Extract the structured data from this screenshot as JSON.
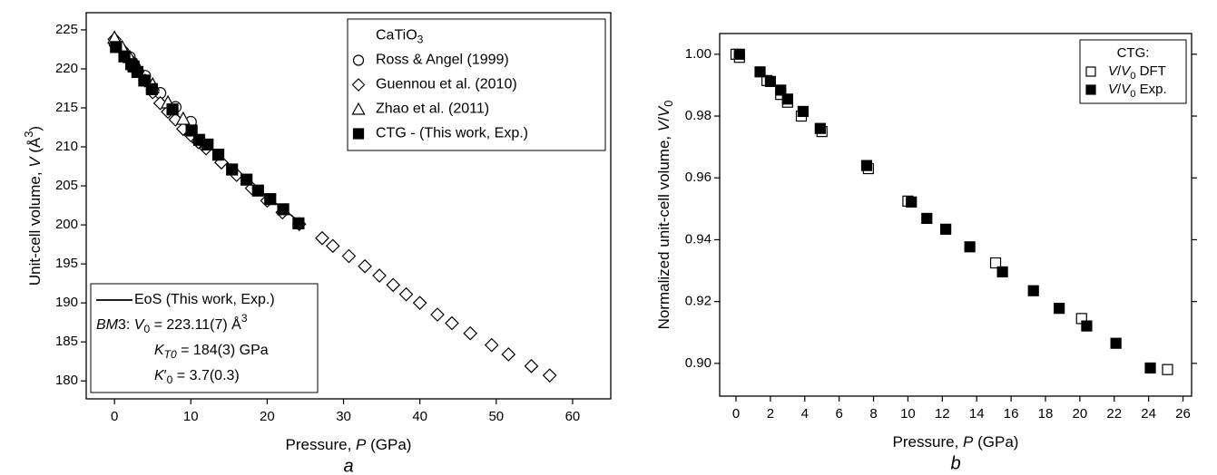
{
  "chart_data": [
    {
      "type": "scatter",
      "caption": "a",
      "x_label": [
        "Pressure, ",
        {
          "t": "P",
          "s": "i"
        },
        " (GPa)"
      ],
      "y_label": [
        "Unit-cell volume, ",
        {
          "t": "V",
          "s": "i"
        },
        " (Å",
        {
          "t": "3",
          "s": "sup"
        },
        ")"
      ],
      "xlim": [
        -3.7,
        65
      ],
      "xticks": [
        0,
        10,
        20,
        30,
        40,
        50,
        60
      ],
      "ylim": [
        177.7,
        227.2
      ],
      "yticks": [
        180,
        185,
        190,
        195,
        200,
        205,
        210,
        215,
        220,
        225
      ],
      "legend": "upper right",
      "legend_title": [
        "CaTiO",
        {
          "t": "3",
          "s": "sub"
        }
      ],
      "series": [
        {
          "name": "Ross & Angel (1999)",
          "marker": "circle",
          "filled": false,
          "color": "#000000",
          "x": [
            0,
            2,
            4,
            6,
            8,
            10
          ],
          "values": [
            223.3,
            221.5,
            219.1,
            216.9,
            215.1,
            213.2
          ]
        },
        {
          "name": "Guennou et al. (2010)",
          "marker": "diamond",
          "filled": false,
          "color": "#000000",
          "x": [
            0,
            1,
            2,
            3,
            4,
            5,
            6,
            7,
            8,
            9,
            10,
            11,
            12,
            14,
            16,
            18,
            20,
            22,
            24.2,
            27.2,
            28.6,
            30.7,
            32.8,
            34.7,
            36.5,
            38.2,
            40.0,
            42.3,
            44.2,
            46.6,
            49.4,
            51.6,
            54.6,
            57.0
          ],
          "values": [
            223.8,
            222.5,
            221.2,
            219.8,
            218.5,
            217.0,
            215.6,
            214.5,
            213.5,
            212.3,
            211.5,
            210.6,
            209.8,
            208.0,
            206.4,
            204.7,
            203.1,
            201.6,
            200.1,
            198.3,
            197.3,
            196.0,
            194.7,
            193.5,
            192.3,
            191.1,
            190.0,
            188.5,
            187.4,
            186.1,
            184.6,
            183.4,
            181.9,
            180.7
          ]
        },
        {
          "name": "Zhao et al. (2011)",
          "marker": "triangle",
          "filled": false,
          "color": "#000000",
          "x": [
            0,
            1,
            2,
            3,
            5,
            7,
            9
          ],
          "values": [
            224.0,
            222.8,
            221.5,
            220.3,
            218.0,
            215.7,
            213.6
          ]
        },
        {
          "name": "CTG - (This work, Exp.)",
          "marker": "square",
          "filled": true,
          "color": "#000000",
          "x": [
            0.2,
            1.3,
            2.2,
            2.5,
            3.0,
            3.9,
            4.9,
            7.6,
            10.1,
            11.1,
            12.2,
            13.6,
            15.4,
            17.3,
            18.8,
            20.4,
            22.1,
            24.1
          ],
          "values": [
            222.8,
            221.6,
            220.6,
            220.3,
            219.6,
            218.5,
            217.4,
            214.8,
            212.1,
            210.9,
            210.3,
            209.0,
            207.1,
            205.8,
            204.4,
            203.3,
            202.0,
            200.2
          ]
        }
      ],
      "fit": {
        "name": "EoS (This work, Exp.)",
        "color": "#000000",
        "x": [
          0,
          4,
          8,
          12,
          16,
          20,
          24
        ],
        "values": [
          223.11,
          218.5,
          214.29,
          210.45,
          206.91,
          203.63,
          200.58
        ]
      },
      "fit_legend": "lower left",
      "annotations": [
        [
          {
            "t": "BM",
            "s": "i"
          },
          "3: ",
          {
            "t": "V",
            "s": "i"
          },
          {
            "t": "0",
            "s": "sub"
          },
          " = 223.11(7) Å",
          {
            "t": "3",
            "s": "sup"
          }
        ],
        [
          {
            "t": "K",
            "s": "i"
          },
          {
            "t": "T0",
            "s": "i sub"
          },
          " = 184(3) GPa"
        ],
        [
          {
            "t": "K",
            "s": "i"
          },
          "′",
          {
            "t": "0",
            "s": "sub"
          },
          " = 3.7(0.3)"
        ]
      ]
    },
    {
      "type": "scatter",
      "caption": "b",
      "x_label": [
        "Pressure, ",
        {
          "t": "P",
          "s": "i"
        },
        " (GPa)"
      ],
      "y_label": [
        "Normalized unit-cell volume, ",
        {
          "t": "V",
          "s": "i"
        },
        "/",
        {
          "t": "V",
          "s": "i"
        },
        {
          "t": "0",
          "s": "sub"
        }
      ],
      "xlim": [
        -0.95,
        26.5
      ],
      "xticks": [
        0,
        2,
        4,
        6,
        8,
        10,
        12,
        14,
        16,
        18,
        20,
        22,
        24,
        26
      ],
      "ylim": [
        0.8894,
        1.0067
      ],
      "yticks": [
        {
          "value": 0.9,
          "label": "0.90"
        },
        {
          "value": 0.92,
          "label": "0.92"
        },
        {
          "value": 0.94,
          "label": "0.94"
        },
        {
          "value": 0.96,
          "label": "0.96"
        },
        {
          "value": 0.98,
          "label": "0.98"
        },
        {
          "value": 1.0,
          "label": "1.00"
        }
      ],
      "mirror_y_ticks": true,
      "legend": "upper right",
      "legend_title": "CTG:",
      "series": [
        {
          "name": [
            {
              "t": "V",
              "s": "i"
            },
            "/",
            {
              "t": "V",
              "s": "i"
            },
            {
              "t": "0",
              "s": "sub"
            },
            " DFT"
          ],
          "marker": "square",
          "filled": false,
          "color": "#000000",
          "x": [
            0,
            0.2,
            1.8,
            2.6,
            3.0,
            3.8,
            5.0,
            7.7,
            10.0,
            15.1,
            20.1,
            25.1
          ],
          "values": [
            1.0,
            0.999,
            0.9915,
            0.987,
            0.9845,
            0.98,
            0.975,
            0.963,
            0.9525,
            0.9325,
            0.9145,
            0.898
          ]
        },
        {
          "name": [
            {
              "t": "V",
              "s": "i"
            },
            "/",
            {
              "t": "V",
              "s": "i"
            },
            {
              "t": "0",
              "s": "sub"
            },
            " Exp."
          ],
          "marker": "square",
          "filled": true,
          "color": "#000000",
          "x": [
            0.2,
            1.4,
            2.0,
            2.6,
            3.0,
            3.9,
            4.9,
            7.6,
            10.2,
            11.1,
            12.2,
            13.6,
            15.5,
            17.3,
            18.8,
            20.4,
            22.1,
            24.1
          ],
          "values": [
            1.0,
            0.9943,
            0.9912,
            0.9884,
            0.9855,
            0.9815,
            0.976,
            0.964,
            0.9522,
            0.9469,
            0.9434,
            0.9377,
            0.9296,
            0.9235,
            0.9178,
            0.9121,
            0.9065,
            0.8985
          ]
        }
      ]
    }
  ]
}
